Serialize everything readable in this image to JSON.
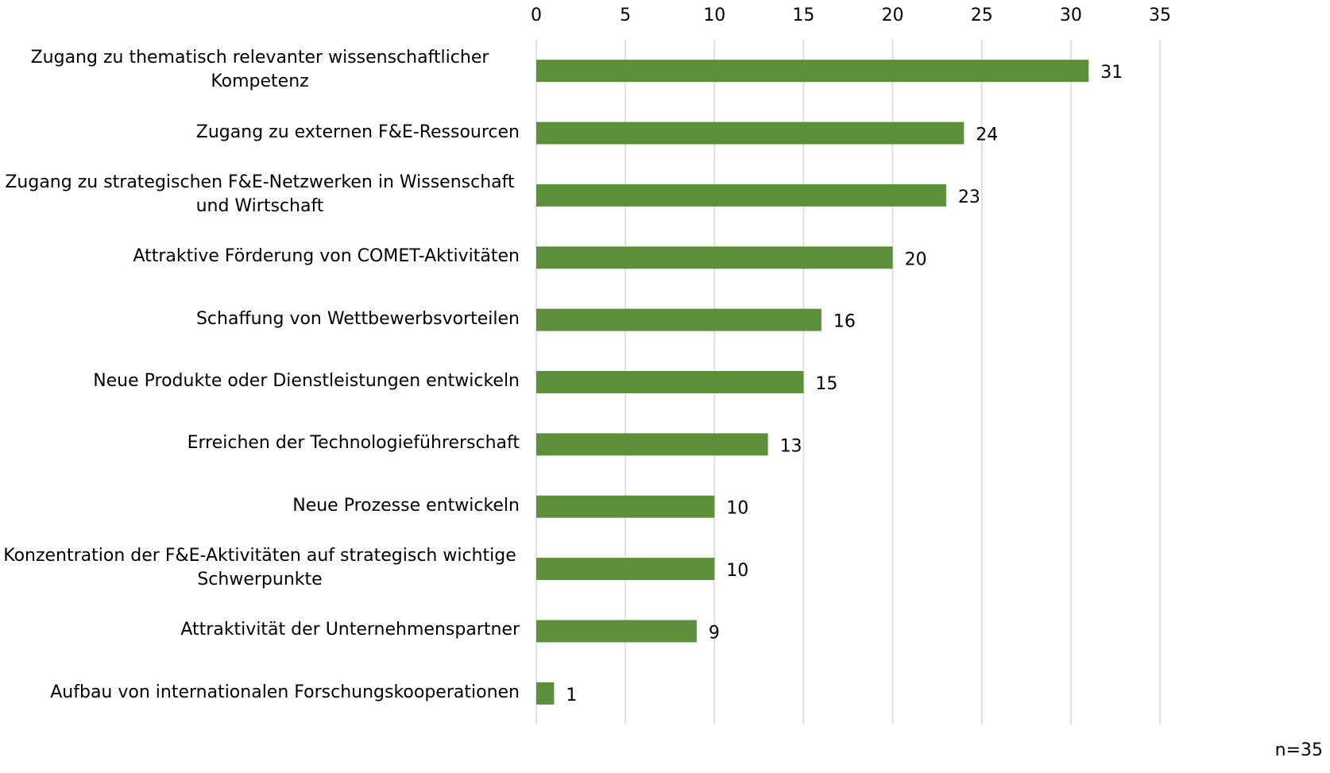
{
  "chart_data": {
    "type": "bar",
    "orientation": "horizontal",
    "categories": [
      "Zugang zu thematisch relevanter wissenschaftlicher Kompetenz",
      "Zugang zu externen F&E-Ressourcen",
      "Zugang zu strategischen F&E-Netzwerken in Wissenschaft und Wirtschaft",
      "Attraktive Förderung von COMET-Aktivitäten",
      "Schaffung von Wettbewerbsvorteilen",
      "Neue Produkte oder Dienstleistungen entwickeln",
      "Erreichen der Technologieführerschaft",
      "Neue Prozesse entwickeln",
      "Konzentration der F&E-Aktivitäten auf strategisch wichtige Schwerpunkte",
      "Attraktivität der Unternehmenspartner",
      "Aufbau von internationalen Forschungskooperationen"
    ],
    "values": [
      31,
      24,
      23,
      20,
      16,
      15,
      13,
      10,
      10,
      9,
      1
    ],
    "color": "#5b8f3a",
    "xlim": [
      0,
      35
    ],
    "xticks": [
      0,
      5,
      10,
      15,
      20,
      25,
      30,
      35
    ],
    "grid": true,
    "annotation": "n=35"
  }
}
